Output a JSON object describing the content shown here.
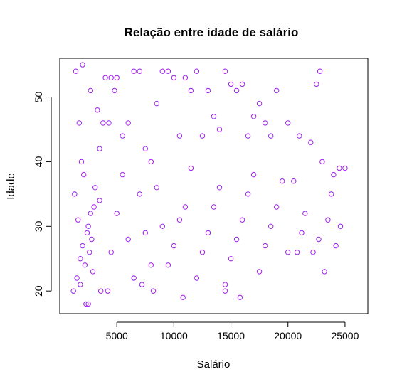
{
  "chart_data": {
    "type": "scatter",
    "title": "Relação entre idade de salário",
    "xlabel": "Salário",
    "ylabel": "Idade",
    "xlim": [
      0,
      27000
    ],
    "ylim": [
      16.5,
      56
    ],
    "x_ticks": [
      5000,
      10000,
      15000,
      20000,
      25000
    ],
    "y_ticks": [
      20,
      30,
      40,
      50
    ],
    "grid": false,
    "legend": "none",
    "point_color": "#a020f0",
    "marker": "open-circle",
    "series": [
      {
        "points": [
          [
            1200,
            20
          ],
          [
            1500,
            22
          ],
          [
            1800,
            25
          ],
          [
            2000,
            27
          ],
          [
            2200,
            24
          ],
          [
            2500,
            30
          ],
          [
            2800,
            28
          ],
          [
            3000,
            33
          ],
          [
            1300,
            35
          ],
          [
            1600,
            31
          ],
          [
            1900,
            40
          ],
          [
            2100,
            38
          ],
          [
            2400,
            29
          ],
          [
            2600,
            26
          ],
          [
            2900,
            23
          ],
          [
            3100,
            36
          ],
          [
            1400,
            54
          ],
          [
            2000,
            55
          ],
          [
            2300,
            18
          ],
          [
            2500,
            18
          ],
          [
            1700,
            46
          ],
          [
            2700,
            51
          ],
          [
            3300,
            48
          ],
          [
            3500,
            42
          ],
          [
            3800,
            46
          ],
          [
            4000,
            53
          ],
          [
            4300,
            46
          ],
          [
            4500,
            53
          ],
          [
            4800,
            51
          ],
          [
            5000,
            53
          ],
          [
            3600,
            20
          ],
          [
            4200,
            20
          ],
          [
            5500,
            44
          ],
          [
            6000,
            46
          ],
          [
            6500,
            54
          ],
          [
            7000,
            54
          ],
          [
            7500,
            42
          ],
          [
            8000,
            40
          ],
          [
            8500,
            49
          ],
          [
            9000,
            54
          ],
          [
            9500,
            54
          ],
          [
            10000,
            53
          ],
          [
            10500,
            44
          ],
          [
            11000,
            53
          ],
          [
            11500,
            51
          ],
          [
            12000,
            54
          ],
          [
            12500,
            44
          ],
          [
            13000,
            51
          ],
          [
            13500,
            47
          ],
          [
            14000,
            45
          ],
          [
            14500,
            54
          ],
          [
            15000,
            52
          ],
          [
            15500,
            51
          ],
          [
            16000,
            52
          ],
          [
            16500,
            44
          ],
          [
            17000,
            47
          ],
          [
            17500,
            49
          ],
          [
            18000,
            46
          ],
          [
            18500,
            44
          ],
          [
            19000,
            51
          ],
          [
            20000,
            46
          ],
          [
            20500,
            37
          ],
          [
            21000,
            44
          ],
          [
            22000,
            43
          ],
          [
            22500,
            52
          ],
          [
            22800,
            54
          ],
          [
            23000,
            40
          ],
          [
            24000,
            38
          ],
          [
            24500,
            39
          ],
          [
            25000,
            39
          ],
          [
            24600,
            30
          ],
          [
            23500,
            31
          ],
          [
            23800,
            35
          ],
          [
            21500,
            32
          ],
          [
            21200,
            29
          ],
          [
            20800,
            26
          ],
          [
            22200,
            26
          ],
          [
            22700,
            28
          ],
          [
            24200,
            27
          ],
          [
            23200,
            23
          ],
          [
            5000,
            32
          ],
          [
            6000,
            28
          ],
          [
            7000,
            35
          ],
          [
            8000,
            24
          ],
          [
            9000,
            30
          ],
          [
            10000,
            27
          ],
          [
            11000,
            33
          ],
          [
            12000,
            22
          ],
          [
            13000,
            29
          ],
          [
            14000,
            36
          ],
          [
            15000,
            25
          ],
          [
            16000,
            31
          ],
          [
            17000,
            38
          ],
          [
            18000,
            27
          ],
          [
            19000,
            33
          ],
          [
            20000,
            26
          ],
          [
            5500,
            38
          ],
          [
            6500,
            22
          ],
          [
            7500,
            29
          ],
          [
            8500,
            36
          ],
          [
            9500,
            24
          ],
          [
            10500,
            31
          ],
          [
            11500,
            39
          ],
          [
            12500,
            26
          ],
          [
            13500,
            33
          ],
          [
            14500,
            21
          ],
          [
            15500,
            28
          ],
          [
            16500,
            35
          ],
          [
            17500,
            23
          ],
          [
            18500,
            30
          ],
          [
            19500,
            37
          ],
          [
            4500,
            26
          ],
          [
            3500,
            34
          ],
          [
            2700,
            32
          ],
          [
            1800,
            21
          ],
          [
            10800,
            19
          ],
          [
            8200,
            20
          ],
          [
            14500,
            20
          ],
          [
            15800,
            19
          ],
          [
            7200,
            21
          ]
        ]
      }
    ]
  }
}
